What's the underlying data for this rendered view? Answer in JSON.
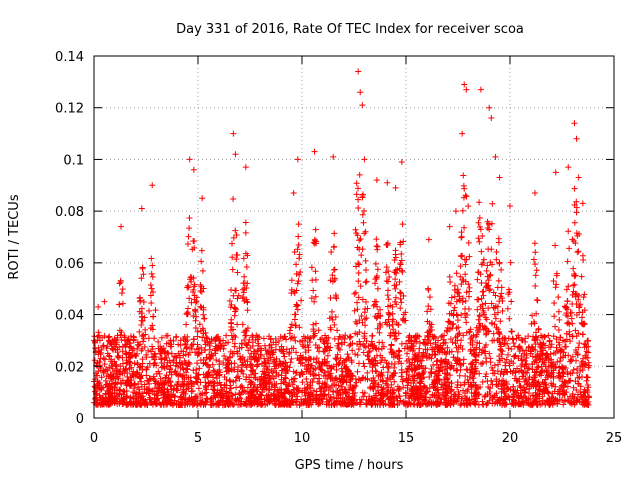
{
  "chart_data": {
    "type": "scatter",
    "title": "Day 331 of 2016, Rate Of TEC Index for receiver scoa",
    "xlabel": "GPS time / hours",
    "ylabel": "ROTI / TECUs",
    "xlim": [
      0,
      25
    ],
    "ylim": [
      0,
      0.14
    ],
    "xticks": [
      0,
      5,
      10,
      15,
      20,
      25
    ],
    "yticks": [
      0,
      0.02,
      0.04,
      0.06,
      0.08,
      0.1,
      0.12,
      0.14
    ],
    "xtick_labels": [
      "0",
      "5",
      "10",
      "15",
      "20",
      "25"
    ],
    "ytick_labels": [
      "0",
      "0.02",
      "0.04",
      "0.06",
      "0.08",
      "0.1",
      "0.12",
      "0.14"
    ],
    "grid": true,
    "legend": "none",
    "marker": "+",
    "color": "#ff0000",
    "series": [
      {
        "name": "ROTI",
        "x_range": [
          0,
          23.8
        ],
        "typical_range": [
          0.005,
          0.05
        ],
        "peak_points": [
          [
            0.2,
            0.043
          ],
          [
            0.5,
            0.045
          ],
          [
            1.3,
            0.074
          ],
          [
            2.3,
            0.081
          ],
          [
            2.8,
            0.09
          ],
          [
            4.6,
            0.1
          ],
          [
            4.8,
            0.096
          ],
          [
            5.2,
            0.085
          ],
          [
            6.7,
            0.11
          ],
          [
            6.8,
            0.102
          ],
          [
            7.3,
            0.097
          ],
          [
            9.6,
            0.087
          ],
          [
            9.8,
            0.1
          ],
          [
            10.6,
            0.103
          ],
          [
            11.5,
            0.101
          ],
          [
            12.7,
            0.134
          ],
          [
            12.8,
            0.126
          ],
          [
            12.9,
            0.121
          ],
          [
            13.0,
            0.1
          ],
          [
            13.6,
            0.092
          ],
          [
            14.1,
            0.091
          ],
          [
            14.5,
            0.089
          ],
          [
            14.8,
            0.099
          ],
          [
            16.1,
            0.069
          ],
          [
            17.1,
            0.074
          ],
          [
            17.4,
            0.08
          ],
          [
            17.8,
            0.129
          ],
          [
            17.9,
            0.127
          ],
          [
            17.7,
            0.11
          ],
          [
            18.6,
            0.127
          ],
          [
            19.0,
            0.12
          ],
          [
            19.1,
            0.116
          ],
          [
            19.3,
            0.101
          ],
          [
            19.5,
            0.093
          ],
          [
            20.0,
            0.082
          ],
          [
            21.2,
            0.087
          ],
          [
            22.2,
            0.095
          ],
          [
            22.8,
            0.097
          ],
          [
            23.1,
            0.114
          ],
          [
            23.2,
            0.108
          ],
          [
            23.3,
            0.093
          ],
          [
            23.5,
            0.083
          ]
        ]
      }
    ]
  }
}
